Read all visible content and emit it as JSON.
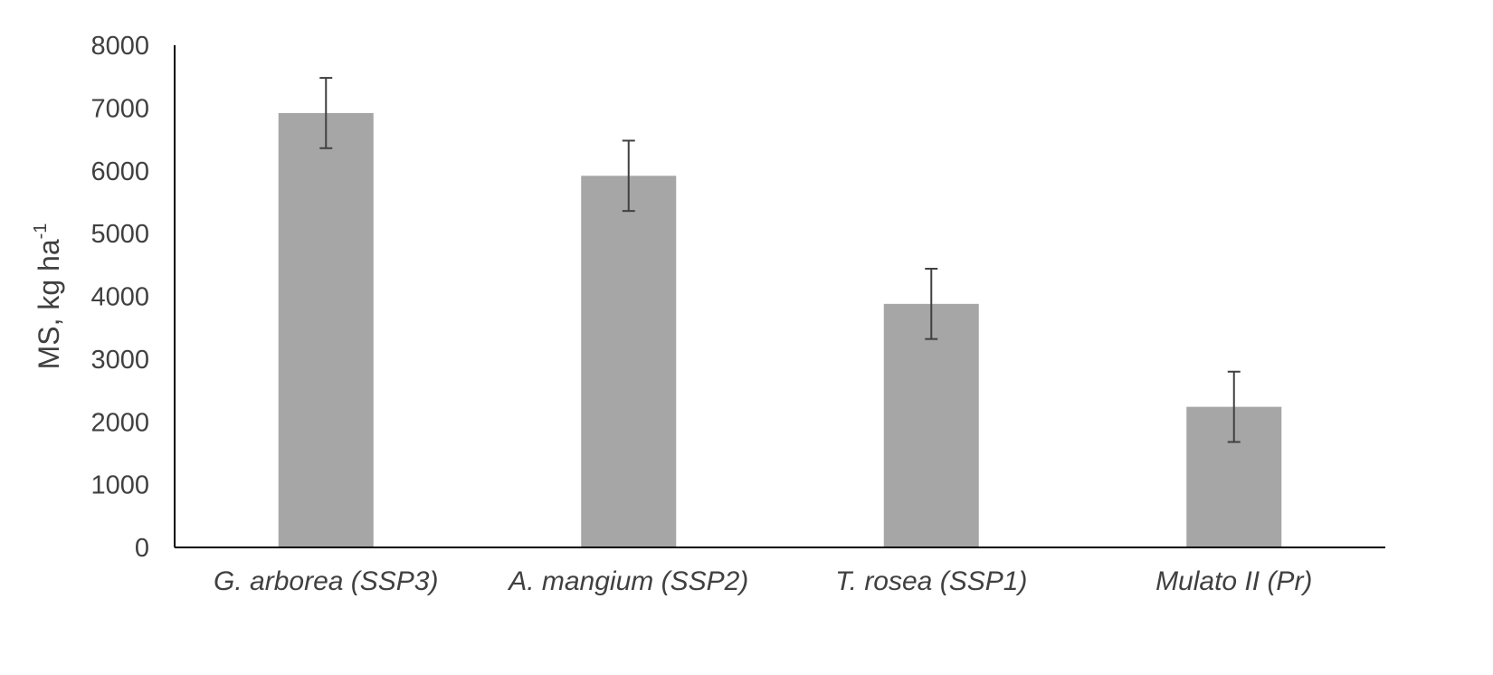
{
  "chart_data": {
    "type": "bar",
    "categories": [
      "G. arborea (SSP3)",
      "A. mangium (SSP2)",
      "T. rosea (SSP1)",
      "Mulato II (Pr)"
    ],
    "values": [
      6920,
      5920,
      3880,
      2240
    ],
    "error": [
      560,
      560,
      560,
      560
    ],
    "ylabel_main": "MS, kg ha",
    "ylabel_sup": "-1",
    "xlabel": "",
    "ylim": [
      0,
      8000
    ],
    "yticks": [
      0,
      1000,
      2000,
      3000,
      4000,
      5000,
      6000,
      7000,
      8000
    ],
    "grid": false,
    "legend": "none",
    "colors": {
      "bar": "#a6a6a6",
      "error_bar": "#404040",
      "axis": "#000000",
      "text": "#404040"
    }
  }
}
